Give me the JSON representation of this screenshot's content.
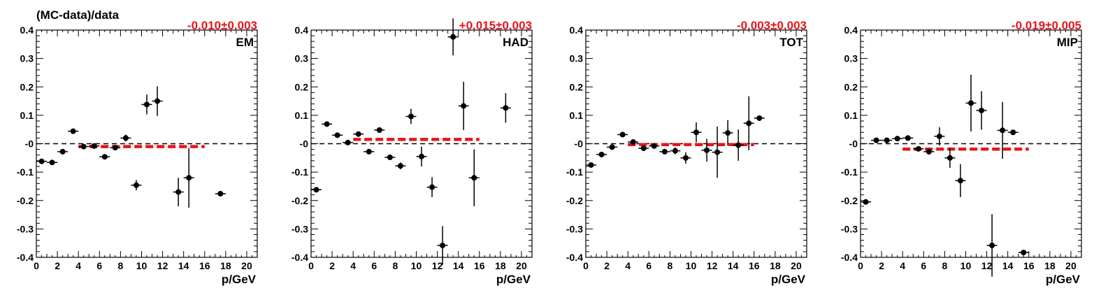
{
  "figure": {
    "ylabel": "(MC-data)/data"
  },
  "colors": {
    "fit": "#e8141c",
    "marker": "#000000",
    "reference": "#000000"
  },
  "chart_data": [
    {
      "type": "scatter",
      "name": "EM",
      "fit_label": "-0.010±0.003",
      "fit_value": -0.01,
      "fit_xrange": [
        4,
        16
      ],
      "xlabel": "p/GeV",
      "xlim": [
        0,
        21
      ],
      "ylim": [
        -0.4,
        0.4
      ],
      "x_ticks": [
        "0",
        "2",
        "4",
        "6",
        "8",
        "10",
        "12",
        "14",
        "16",
        "18",
        "20"
      ],
      "y_ticks": [
        "-0.4",
        "-0.3",
        "-0.2",
        "-0.1",
        "-0",
        "0.1",
        "0.2",
        "0.3",
        "0.4"
      ],
      "points": [
        {
          "x": 0.5,
          "y": -0.062,
          "err": 0.004
        },
        {
          "x": 1.5,
          "y": -0.066,
          "err": 0.004
        },
        {
          "x": 2.5,
          "y": -0.028,
          "err": 0.004
        },
        {
          "x": 3.5,
          "y": 0.044,
          "err": 0.004
        },
        {
          "x": 4.5,
          "y": -0.01,
          "err": 0.004
        },
        {
          "x": 5.5,
          "y": -0.008,
          "err": 0.004
        },
        {
          "x": 6.5,
          "y": -0.046,
          "err": 0.004
        },
        {
          "x": 7.5,
          "y": -0.014,
          "err": 0.004
        },
        {
          "x": 8.5,
          "y": 0.02,
          "err": 0.012
        },
        {
          "x": 9.5,
          "y": -0.146,
          "err": 0.018
        },
        {
          "x": 10.5,
          "y": 0.138,
          "err": 0.035
        },
        {
          "x": 11.5,
          "y": 0.15,
          "err": 0.052
        },
        {
          "x": 13.5,
          "y": -0.17,
          "err": 0.05
        },
        {
          "x": 14.5,
          "y": -0.12,
          "err": 0.105
        },
        {
          "x": 17.5,
          "y": -0.176,
          "err": 0.004
        }
      ]
    },
    {
      "type": "scatter",
      "name": "HAD",
      "fit_label": "+0.015±0.003",
      "fit_value": 0.015,
      "fit_xrange": [
        4,
        16
      ],
      "xlabel": "p/GeV",
      "xlim": [
        0,
        21
      ],
      "ylim": [
        -0.4,
        0.4
      ],
      "x_ticks": [
        "0",
        "2",
        "4",
        "6",
        "8",
        "10",
        "12",
        "14",
        "16",
        "18",
        "20"
      ],
      "y_ticks": [
        "-0.4",
        "-0.3",
        "-0.2",
        "-0.1",
        "-0",
        "0.1",
        "0.2",
        "0.3",
        "0.4"
      ],
      "points": [
        {
          "x": 0.5,
          "y": -0.162,
          "err": 0.004
        },
        {
          "x": 1.5,
          "y": 0.069,
          "err": 0.004
        },
        {
          "x": 2.5,
          "y": 0.03,
          "err": 0.004
        },
        {
          "x": 3.5,
          "y": 0.004,
          "err": 0.004
        },
        {
          "x": 4.5,
          "y": 0.034,
          "err": 0.004
        },
        {
          "x": 5.5,
          "y": -0.028,
          "err": 0.004
        },
        {
          "x": 6.5,
          "y": 0.048,
          "err": 0.004
        },
        {
          "x": 7.5,
          "y": -0.048,
          "err": 0.008
        },
        {
          "x": 8.5,
          "y": -0.078,
          "err": 0.012
        },
        {
          "x": 9.5,
          "y": 0.096,
          "err": 0.027
        },
        {
          "x": 10.5,
          "y": -0.045,
          "err": 0.035
        },
        {
          "x": 11.5,
          "y": -0.153,
          "err": 0.035
        },
        {
          "x": 12.5,
          "y": -0.358,
          "err": 0.068
        },
        {
          "x": 13.5,
          "y": 0.376,
          "err": 0.065
        },
        {
          "x": 14.5,
          "y": 0.133,
          "err": 0.085
        },
        {
          "x": 15.5,
          "y": -0.12,
          "err": 0.1
        },
        {
          "x": 18.5,
          "y": 0.126,
          "err": 0.052
        }
      ]
    },
    {
      "type": "scatter",
      "name": "TOT",
      "fit_label": "-0.003±0.003",
      "fit_value": -0.003,
      "fit_xrange": [
        4,
        16
      ],
      "xlabel": "p/GeV",
      "xlim": [
        0,
        21
      ],
      "ylim": [
        -0.4,
        0.4
      ],
      "x_ticks": [
        "0",
        "2",
        "4",
        "6",
        "8",
        "10",
        "12",
        "14",
        "16",
        "18",
        "20"
      ],
      "y_ticks": [
        "-0.4",
        "-0.3",
        "-0.2",
        "-0.1",
        "-0",
        "0.1",
        "0.2",
        "0.3",
        "0.4"
      ],
      "points": [
        {
          "x": 0.5,
          "y": -0.075,
          "err": 0.004
        },
        {
          "x": 1.5,
          "y": -0.038,
          "err": 0.004
        },
        {
          "x": 2.5,
          "y": -0.012,
          "err": 0.004
        },
        {
          "x": 3.5,
          "y": 0.032,
          "err": 0.004
        },
        {
          "x": 4.5,
          "y": 0.006,
          "err": 0.004
        },
        {
          "x": 5.5,
          "y": -0.016,
          "err": 0.004
        },
        {
          "x": 6.5,
          "y": -0.008,
          "err": 0.004
        },
        {
          "x": 7.5,
          "y": -0.028,
          "err": 0.008
        },
        {
          "x": 8.5,
          "y": -0.025,
          "err": 0.012
        },
        {
          "x": 9.5,
          "y": -0.05,
          "err": 0.02
        },
        {
          "x": 10.5,
          "y": 0.04,
          "err": 0.035
        },
        {
          "x": 11.5,
          "y": -0.023,
          "err": 0.04
        },
        {
          "x": 12.5,
          "y": -0.03,
          "err": 0.09
        },
        {
          "x": 13.5,
          "y": 0.038,
          "err": 0.045
        },
        {
          "x": 14.5,
          "y": -0.005,
          "err": 0.055
        },
        {
          "x": 15.5,
          "y": 0.072,
          "err": 0.095
        },
        {
          "x": 16.5,
          "y": 0.09,
          "err": 0.004
        }
      ]
    },
    {
      "type": "scatter",
      "name": "MIP",
      "fit_label": "-0.019±0.005",
      "fit_value": -0.019,
      "fit_xrange": [
        4,
        16
      ],
      "xlabel": "p/GeV",
      "xlim": [
        0,
        21
      ],
      "ylim": [
        -0.4,
        0.4
      ],
      "x_ticks": [
        "0",
        "2",
        "4",
        "6",
        "8",
        "10",
        "12",
        "14",
        "16",
        "18",
        "20"
      ],
      "y_ticks": [
        "-0.4",
        "-0.3",
        "-0.2",
        "-0.1",
        "-0",
        "0.1",
        "0.2",
        "0.3",
        "0.4"
      ],
      "points": [
        {
          "x": 0.5,
          "y": -0.205,
          "err": 0.004
        },
        {
          "x": 1.5,
          "y": 0.012,
          "err": 0.004
        },
        {
          "x": 2.5,
          "y": 0.012,
          "err": 0.004
        },
        {
          "x": 3.5,
          "y": 0.018,
          "err": 0.004
        },
        {
          "x": 4.5,
          "y": 0.02,
          "err": 0.004
        },
        {
          "x": 5.5,
          "y": -0.018,
          "err": 0.006
        },
        {
          "x": 6.5,
          "y": -0.028,
          "err": 0.01
        },
        {
          "x": 7.5,
          "y": 0.026,
          "err": 0.032
        },
        {
          "x": 8.5,
          "y": -0.05,
          "err": 0.035
        },
        {
          "x": 9.5,
          "y": -0.13,
          "err": 0.058
        },
        {
          "x": 10.5,
          "y": 0.143,
          "err": 0.1
        },
        {
          "x": 11.5,
          "y": 0.117,
          "err": 0.068
        },
        {
          "x": 12.5,
          "y": -0.358,
          "err": 0.11
        },
        {
          "x": 13.5,
          "y": 0.047,
          "err": 0.1
        },
        {
          "x": 14.5,
          "y": 0.04,
          "err": 0.004
        },
        {
          "x": 15.5,
          "y": -0.383,
          "err": 0.008
        }
      ]
    }
  ]
}
